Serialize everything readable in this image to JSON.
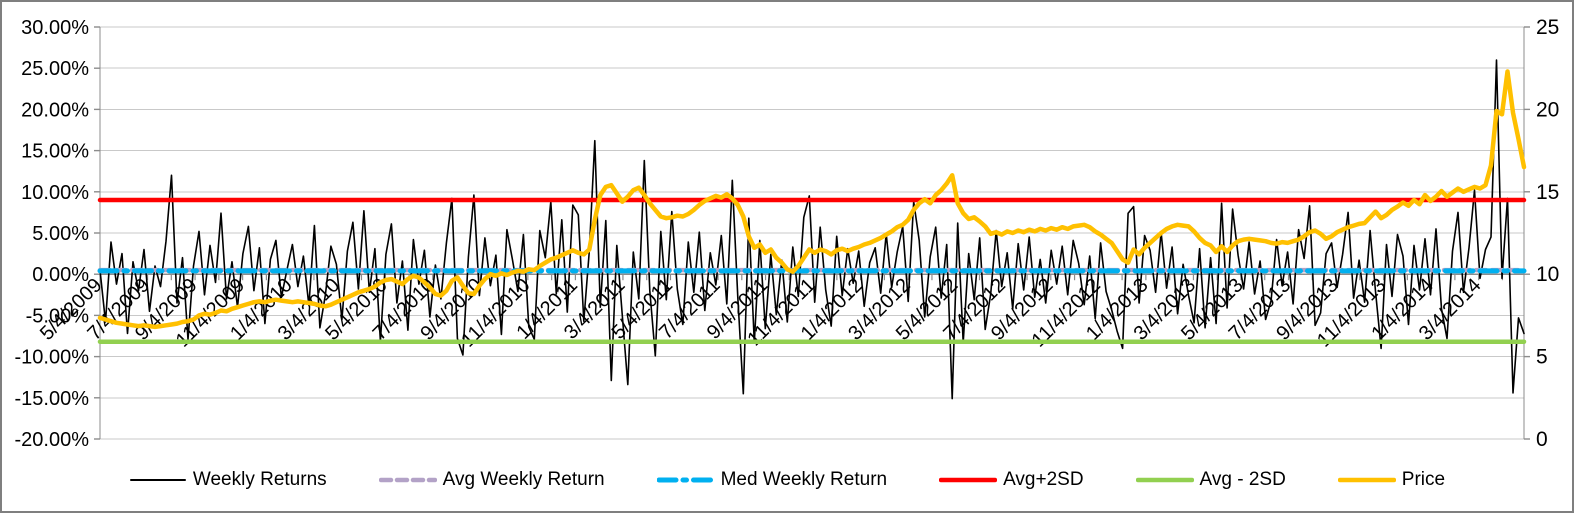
{
  "chart_data": {
    "type": "line",
    "title": "",
    "x_labels": [
      "5/4/2009",
      "7/4/2009",
      "9/4/2009",
      "11/4/2009",
      "1/4/2010",
      "3/4/2010",
      "5/4/2010",
      "7/4/2010",
      "9/4/2010",
      "11/4/2010",
      "1/4/2011",
      "3/4/2011",
      "5/4/2011",
      "7/4/2011",
      "9/4/2011",
      "11/4/2011",
      "1/4/2012",
      "3/4/2012",
      "5/4/2012",
      "7/4/2012",
      "9/4/2012",
      "11/4/2012",
      "1/4/2013",
      "3/4/2013",
      "5/4/2013",
      "7/4/2013",
      "9/4/2013",
      "11/4/2013",
      "1/4/2014",
      "3/4/2014"
    ],
    "left_axis": {
      "title": "",
      "min": -20,
      "max": 30,
      "step": 5,
      "tick_labels": [
        "30.00%",
        "25.00%",
        "20.00%",
        "15.00%",
        "10.00%",
        "5.00%",
        "0.00%",
        "-5.00%",
        "-10.00%",
        "-15.00%",
        "-20.00%"
      ]
    },
    "right_axis": {
      "title": "",
      "min": 0,
      "max": 25,
      "step": 5,
      "tick_labels": [
        "25",
        "20",
        "15",
        "10",
        "5",
        "0"
      ]
    },
    "grid": true,
    "legend_position": "bottom",
    "colors": {
      "grid": "#c9c9c9",
      "axis": "#8c8c8c",
      "frame_border": "#7f7f7f",
      "background": "#ffffff"
    },
    "series": [
      {
        "name": "Weekly Returns",
        "axis": "left",
        "color": "#000000",
        "width": 1.6,
        "style": "solid",
        "values": [
          0.5,
          -5.8,
          3.9,
          -1.2,
          2.5,
          -7.2,
          1.5,
          -2.0,
          3.0,
          -4.5,
          1.0,
          -1.5,
          4.0,
          12.0,
          -3.5,
          2.0,
          -7.9,
          1.0,
          5.2,
          -2.5,
          3.5,
          -1.0,
          7.4,
          -3.0,
          1.5,
          -4.0,
          2.5,
          5.8,
          -2.0,
          3.2,
          -6.0,
          1.8,
          4.1,
          -2.8,
          0.5,
          3.6,
          -1.5,
          2.2,
          -3.8,
          5.9,
          -6.5,
          -2.5,
          3.4,
          1.2,
          -5.5,
          2.8,
          6.3,
          -1.8,
          7.7,
          -2.2,
          3.1,
          -8.1,
          2.4,
          6.1,
          -3.5,
          1.6,
          -6.8,
          4.2,
          -1.2,
          2.9,
          -5.2,
          1.1,
          -3.0,
          3.8,
          9.2,
          -7.8,
          -9.8,
          2.1,
          9.6,
          -2.6,
          4.4,
          -1.4,
          2.3,
          -7.3,
          5.4,
          1.8,
          -2.1,
          4.8,
          -6.4,
          -7.9,
          5.3,
          2.0,
          8.8,
          -2.4,
          6.6,
          -4.6,
          8.4,
          7.2,
          -5.7,
          2.8,
          16.2,
          -4.0,
          6.5,
          -12.9,
          3.5,
          -5.0,
          -13.4,
          2.7,
          -3.0,
          13.8,
          -2.0,
          -9.9,
          5.2,
          -3.1,
          7.6,
          -1.8,
          -6.1,
          3.9,
          -2.2,
          5.1,
          -4.4,
          2.6,
          -1.3,
          4.7,
          -3.6,
          11.4,
          -2.8,
          -14.5,
          6.8,
          -8.3,
          4.1,
          -6.6,
          2.4,
          -4.9,
          1.7,
          -5.8,
          3.3,
          -2.7,
          6.9,
          9.5,
          -3.4,
          5.7,
          -1.9,
          -6.3,
          4.6,
          -2.6,
          3.1,
          -1.1,
          2.8,
          -3.9,
          1.4,
          3.2,
          -2.3,
          4.9,
          -1.6,
          2.7,
          5.8,
          -3.3,
          8.8,
          4.1,
          -5.2,
          2.1,
          5.7,
          -2.9,
          3.6,
          -15.1,
          6.2,
          -8.3,
          2.5,
          -3.1,
          4.4,
          -6.7,
          -2.4,
          5.3,
          -1.5,
          2.6,
          -4.2,
          3.7,
          -1.9,
          4.5,
          -2.8,
          1.8,
          -3.5,
          2.9,
          -1.2,
          3.4,
          -2.5,
          4.1,
          1.3,
          -3.7,
          2.2,
          -5.4,
          3.8,
          -2.1,
          -4.3,
          -6.9,
          -9.0,
          7.4,
          8.2,
          -3.5,
          4.7,
          2.9,
          -2.2,
          5.1,
          -1.7,
          3.3,
          -4.8,
          1.2,
          -2.6,
          -5.9,
          3.1,
          -6.5,
          2.0,
          -6.0,
          8.6,
          -4.1,
          7.9,
          2.3,
          -1.8,
          3.9,
          -2.4,
          1.6,
          -5.5,
          -3.2,
          4.2,
          -1.4,
          2.7,
          -3.6,
          5.4,
          1.9,
          8.3,
          -6.2,
          -4.7,
          2.5,
          3.8,
          -1.6,
          2.4,
          7.5,
          -2.9,
          1.7,
          -3.4,
          5.3,
          -2.2,
          -9.0,
          3.6,
          -2.7,
          4.8,
          2.2,
          -6.1,
          3.5,
          -1.9,
          4.3,
          -2.5,
          5.5,
          -4.2,
          -7.8,
          2.8,
          7.5,
          -2.2,
          3.2,
          10.2,
          -0.5,
          3.0,
          4.5,
          26.0,
          -0.5,
          9.2,
          -14.4,
          -5.3,
          -7.2
        ]
      },
      {
        "name": "Avg Weekly Return",
        "axis": "left",
        "color": "#b3a2c7",
        "width": 4.5,
        "style": "dashed",
        "constant": 0.5
      },
      {
        "name": "Med Weekly Return",
        "axis": "left",
        "color": "#00b0f0",
        "width": 5,
        "style": "dashdot",
        "constant": 0.4
      },
      {
        "name": "Avg+2SD",
        "axis": "left",
        "color": "#ff0000",
        "width": 4.5,
        "style": "solid",
        "constant": 9.0
      },
      {
        "name": "Avg - 2SD",
        "axis": "left",
        "color": "#92d050",
        "width": 4.5,
        "style": "solid",
        "constant": -8.2
      },
      {
        "name": "Price",
        "axis": "right",
        "color": "#ffc000",
        "width": 4.5,
        "style": "solid",
        "values": [
          7.35,
          7.25,
          7.15,
          7.05,
          7.0,
          6.95,
          6.9,
          6.85,
          6.9,
          6.85,
          6.8,
          6.85,
          6.9,
          6.95,
          7.0,
          7.1,
          7.15,
          7.25,
          7.5,
          7.6,
          7.55,
          7.65,
          7.8,
          7.75,
          7.9,
          8.0,
          8.1,
          8.2,
          8.3,
          8.35,
          8.3,
          8.4,
          8.45,
          8.4,
          8.35,
          8.3,
          8.35,
          8.3,
          8.25,
          8.2,
          8.1,
          8.05,
          8.15,
          8.3,
          8.45,
          8.6,
          8.75,
          8.9,
          9.0,
          9.1,
          9.25,
          9.5,
          9.65,
          9.7,
          9.55,
          9.4,
          9.7,
          9.9,
          9.8,
          9.5,
          9.2,
          8.8,
          8.7,
          9.0,
          9.6,
          9.8,
          9.3,
          8.85,
          8.8,
          9.3,
          9.7,
          10.0,
          9.9,
          10.05,
          9.95,
          10.1,
          10.2,
          10.15,
          10.3,
          10.25,
          10.5,
          10.7,
          10.9,
          11.0,
          11.15,
          11.3,
          11.45,
          11.3,
          11.2,
          11.5,
          13.3,
          14.8,
          15.3,
          15.4,
          14.9,
          14.4,
          14.7,
          15.1,
          15.25,
          14.8,
          14.3,
          13.9,
          13.5,
          13.4,
          13.45,
          13.55,
          13.5,
          13.65,
          13.9,
          14.2,
          14.45,
          14.6,
          14.75,
          14.65,
          14.85,
          14.6,
          14.2,
          13.5,
          12.3,
          11.6,
          11.8,
          11.3,
          11.5,
          11.0,
          10.7,
          10.3,
          10.15,
          10.5,
          11.0,
          11.5,
          11.3,
          11.5,
          11.4,
          11.2,
          11.45,
          11.55,
          11.4,
          11.55,
          11.65,
          11.8,
          11.9,
          12.05,
          12.2,
          12.4,
          12.6,
          12.85,
          13.0,
          13.3,
          13.9,
          14.3,
          14.55,
          14.3,
          14.8,
          15.1,
          15.5,
          16.0,
          14.3,
          13.7,
          13.35,
          13.45,
          13.2,
          12.9,
          12.45,
          12.55,
          12.4,
          12.6,
          12.5,
          12.65,
          12.55,
          12.7,
          12.6,
          12.75,
          12.65,
          12.8,
          12.7,
          12.85,
          12.75,
          12.9,
          12.95,
          13.0,
          12.85,
          12.6,
          12.4,
          12.15,
          11.9,
          11.4,
          10.9,
          10.7,
          11.5,
          11.2,
          11.6,
          11.9,
          12.2,
          12.5,
          12.75,
          12.9,
          13.0,
          12.95,
          12.9,
          12.6,
          12.2,
          11.9,
          11.75,
          11.35,
          11.7,
          11.35,
          11.75,
          12.0,
          12.1,
          12.15,
          12.1,
          12.05,
          12.0,
          11.9,
          11.85,
          11.95,
          11.9,
          12.0,
          12.1,
          12.3,
          12.55,
          12.65,
          12.45,
          12.15,
          12.3,
          12.55,
          12.7,
          12.85,
          12.95,
          13.05,
          13.1,
          13.45,
          13.8,
          13.4,
          13.6,
          13.9,
          14.1,
          14.35,
          14.15,
          14.5,
          14.25,
          14.8,
          14.45,
          14.7,
          15.05,
          14.7,
          14.95,
          15.2,
          15.0,
          15.15,
          15.3,
          15.2,
          15.4,
          16.6,
          19.9,
          19.7,
          22.3,
          19.8,
          18.2,
          16.5
        ]
      }
    ]
  }
}
